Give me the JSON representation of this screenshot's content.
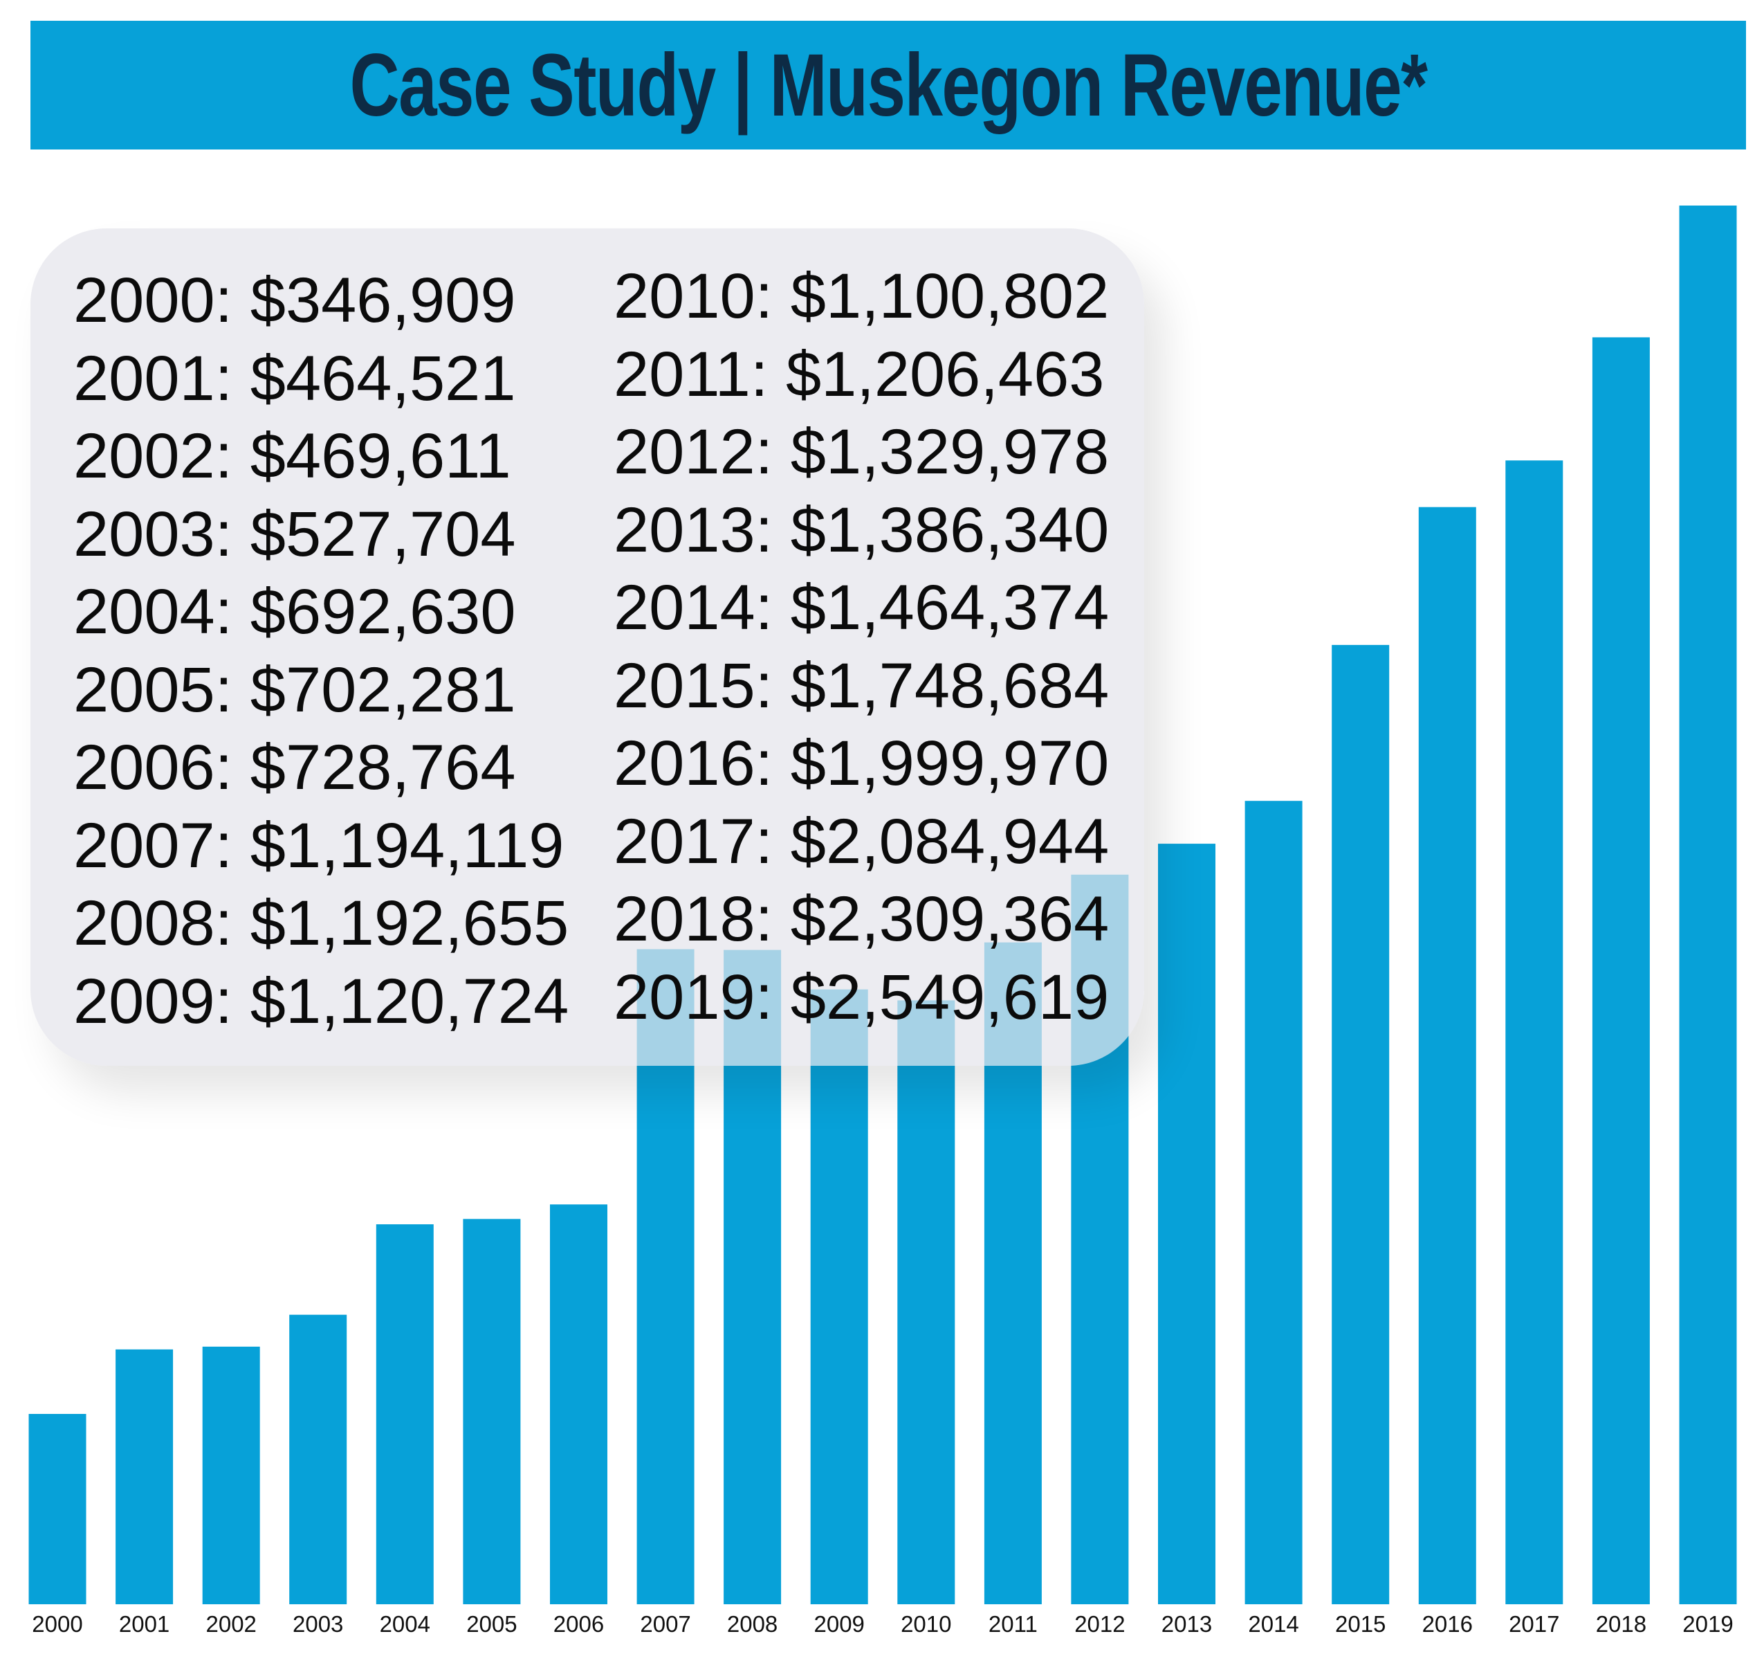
{
  "title": "Case Study | Muskegon Revenue*",
  "colors": {
    "title_bar": "#07a1d8",
    "title_text": "#0d2b45",
    "bar": "#07a1d8",
    "panel": "#e5e5eb"
  },
  "panel": {
    "left_entries": [
      "2000: $346,909",
      "2001: $464,521",
      "2002: $469,611",
      "2003: $527,704",
      "2004: $692,630",
      "2005: $702,281",
      "2006: $728,764",
      "2007: $1,194,119",
      "2008: $1,192,655",
      "2009: $1,120,724"
    ],
    "right_entries": [
      "2010: $1,100,802",
      "2011: $1,206,463",
      "2012: $1,329,978",
      "2013: $1,386,340",
      "2014: $1,464,374",
      "2015: $1,748,684",
      "2016: $1,999,970",
      "2017: $2,084,944",
      "2018: $2,309,364",
      "2019: $2,549,619"
    ]
  },
  "chart_data": {
    "type": "bar",
    "title": "Case Study | Muskegon Revenue*",
    "xlabel": "",
    "ylabel": "",
    "categories": [
      "2000",
      "2001",
      "2002",
      "2003",
      "2004",
      "2005",
      "2006",
      "2007",
      "2008",
      "2009",
      "2010",
      "2011",
      "2012",
      "2013",
      "2014",
      "2015",
      "2016",
      "2017",
      "2018",
      "2019"
    ],
    "values": [
      346909,
      464521,
      469611,
      527704,
      692630,
      702281,
      728764,
      1194119,
      1192655,
      1120724,
      1100802,
      1206463,
      1329978,
      1386340,
      1464374,
      1748684,
      1999970,
      2084944,
      2309364,
      2549619
    ],
    "ylim": [
      0,
      2549619
    ],
    "grid": false,
    "legend": "none"
  }
}
